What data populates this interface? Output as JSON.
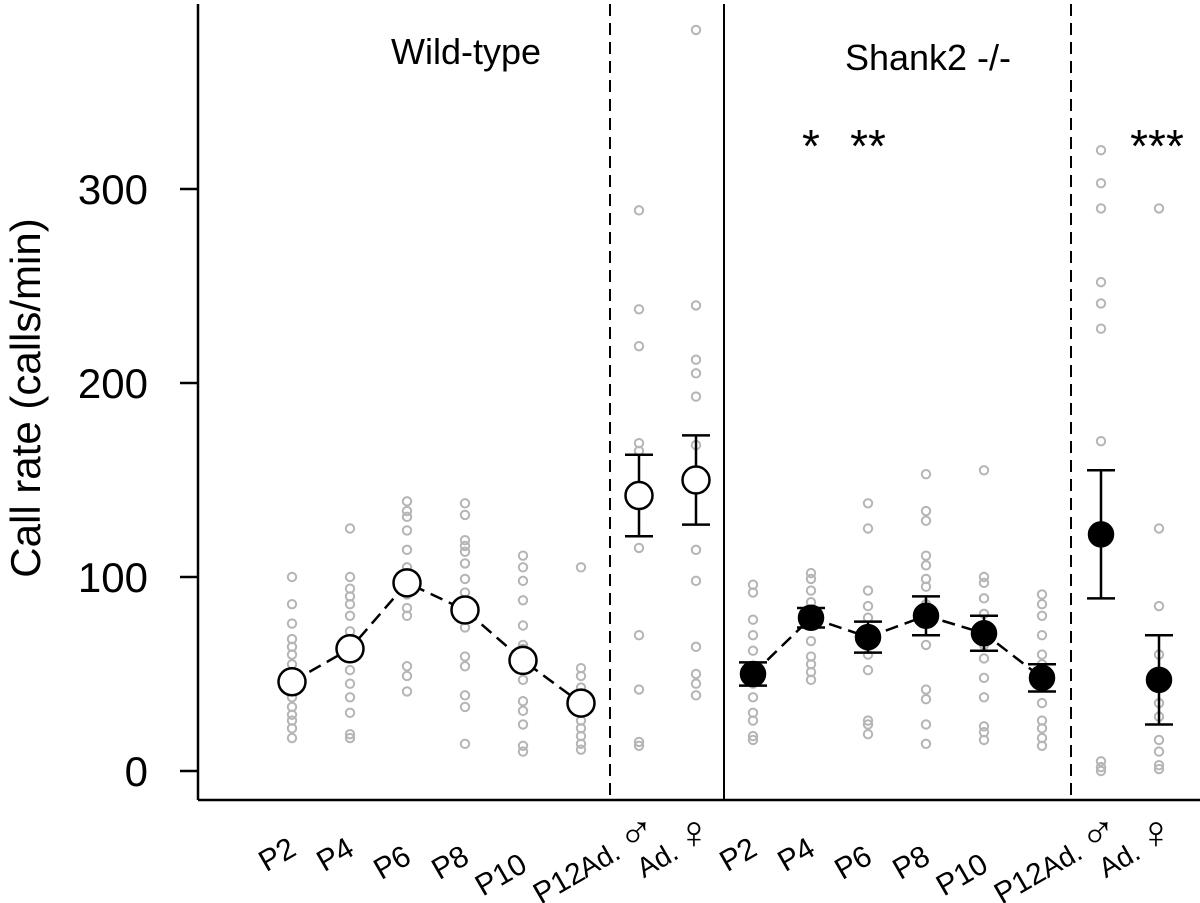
{
  "chart_data": {
    "type": "scatter",
    "ylabel": "Call rate (calls/min)",
    "ylim": [
      -15,
      395
    ],
    "yticks": [
      0,
      100,
      200,
      300
    ],
    "panels": [
      {
        "title": "Wild-type",
        "marker": "open",
        "pup_categories": [
          "P2",
          "P4",
          "P6",
          "P8",
          "P10",
          "P12"
        ],
        "pup_means": [
          46,
          63,
          97,
          83,
          57,
          35
        ],
        "pup_individuals": [
          [
            100,
            86,
            76,
            68,
            64,
            60,
            55,
            51,
            48,
            43,
            38,
            33,
            29,
            26,
            22,
            17
          ],
          [
            125,
            100,
            94,
            90,
            86,
            80,
            72,
            66,
            60,
            52,
            45,
            38,
            30,
            19,
            17
          ],
          [
            139,
            134,
            131,
            124,
            114,
            105,
            99,
            95,
            91,
            84,
            80,
            54,
            49,
            41
          ],
          [
            138,
            132,
            119,
            116,
            113,
            107,
            99,
            92,
            81,
            74,
            59,
            54,
            39,
            33,
            14
          ],
          [
            111,
            105,
            98,
            88,
            75,
            65,
            63,
            54,
            47,
            36,
            31,
            24,
            13,
            10
          ],
          [
            105,
            53,
            49,
            43,
            40,
            36,
            33,
            30,
            26,
            22,
            18,
            14,
            11
          ]
        ],
        "adult_categories": [
          "Ad. ♂",
          "Ad. ♀"
        ],
        "adult_means": [
          142,
          150
        ],
        "adult_errors": [
          21,
          23
        ],
        "adult_individuals": [
          [
            289,
            238,
            219,
            169,
            165,
            115,
            70,
            42,
            15,
            13
          ],
          [
            382,
            240,
            212,
            205,
            193,
            168,
            114,
            98,
            64,
            50,
            45,
            39
          ]
        ]
      },
      {
        "title": "Shank2 -/-",
        "marker": "filled",
        "pup_categories": [
          "P2",
          "P4",
          "P6",
          "P8",
          "P10",
          "P12"
        ],
        "pup_means": [
          50,
          79,
          69,
          80,
          71,
          48
        ],
        "pup_errors": [
          6,
          5,
          8,
          10,
          9,
          7
        ],
        "pup_individuals": [
          [
            96,
            92,
            78,
            70,
            62,
            53,
            45,
            38,
            30,
            26,
            18,
            16
          ],
          [
            102,
            99,
            93,
            87,
            80,
            76,
            67,
            59,
            55,
            51,
            47
          ],
          [
            138,
            125,
            93,
            85,
            79,
            70,
            65,
            60,
            52,
            26,
            24,
            19
          ],
          [
            153,
            134,
            129,
            111,
            106,
            99,
            95,
            86,
            78,
            65,
            42,
            37,
            24,
            14
          ],
          [
            155,
            100,
            97,
            89,
            81,
            74,
            65,
            58,
            48,
            38,
            23,
            20,
            16
          ],
          [
            91,
            86,
            80,
            70,
            60,
            55,
            45,
            35,
            26,
            22,
            17,
            13
          ]
        ],
        "adult_categories": [
          "Ad. ♂",
          "Ad. ♀"
        ],
        "adult_means": [
          122,
          47
        ],
        "adult_errors": [
          33,
          23
        ],
        "adult_individuals": [
          [
            320,
            303,
            290,
            252,
            241,
            228,
            170,
            5,
            2,
            0
          ],
          [
            290,
            125,
            85,
            60,
            35,
            28,
            16,
            10,
            3,
            1
          ]
        ]
      }
    ],
    "significance": [
      {
        "panel": 1,
        "category": "P4",
        "label": "*"
      },
      {
        "panel": 1,
        "category": "P6",
        "label": "**"
      },
      {
        "panel": 1,
        "category": "Ad. ♀",
        "label": "***"
      }
    ]
  }
}
